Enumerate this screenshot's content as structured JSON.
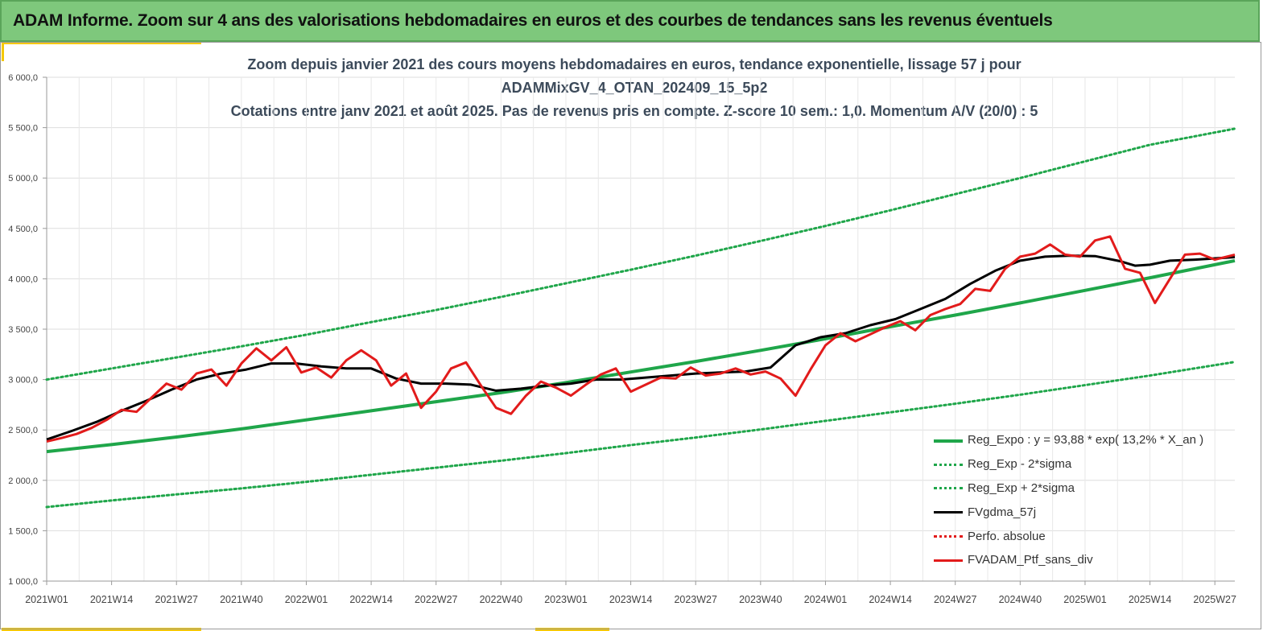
{
  "banner": {
    "title": "ADAM Informe. Zoom sur 4 ans des valorisations hebdomadaires en euros et des courbes de tendances sans les revenus éventuels"
  },
  "chart_data": {
    "type": "line",
    "title": [
      "Zoom depuis janvier 2021 des cours moyens hebdomadaires  en euros, tendance exponentielle, lissage 57 j pour",
      "ADAMMixGV_4_OTAN_202409_15_5p2",
      "Cotations  entre janv 2021 et août 2025. Pas de revenus pris en compte. Z-score 10 sem.: 1,0. Momentum A/V (20/0) : 5"
    ],
    "xlabel": "",
    "ylabel": "",
    "ylim": [
      1000,
      6000
    ],
    "yticks": [
      1000,
      1500,
      2000,
      2500,
      3000,
      3500,
      4000,
      4500,
      5000,
      5500,
      6000
    ],
    "ytick_labels": [
      "1 000,0",
      "1 500,0",
      "2 000,0",
      "2 500,0",
      "3 000,0",
      "3 500,0",
      "4 000,0",
      "4 500,0",
      "5 000,0",
      "5 500,0",
      "6 000,0"
    ],
    "xlim": [
      0,
      238
    ],
    "xticks": [
      0,
      13,
      26,
      39,
      52,
      65,
      78,
      91,
      104,
      117,
      130,
      143,
      156,
      169,
      182,
      195,
      208,
      221,
      234
    ],
    "xtick_labels": [
      "2021W01",
      "2021W14",
      "2021W27",
      "2021W40",
      "2022W01",
      "2022W14",
      "2022W27",
      "2022W40",
      "2023W01",
      "2023W14",
      "2023W27",
      "2023W40",
      "2024W01",
      "2024W14",
      "2024W27",
      "2024W40",
      "2025W01",
      "2025W14",
      "2025W27"
    ],
    "grid": true,
    "legend_position": "bottom-right",
    "series": [
      {
        "name": "Reg_Expo : y = 93,88 * exp( 13,2% *  X_an )",
        "color": "#1fa64a",
        "style": "solid",
        "x": [
          0,
          13,
          26,
          39,
          52,
          65,
          78,
          91,
          104,
          117,
          130,
          143,
          156,
          169,
          182,
          195,
          208,
          221,
          238
        ],
        "values": [
          2285,
          2355,
          2430,
          2510,
          2600,
          2690,
          2780,
          2870,
          2970,
          3075,
          3180,
          3290,
          3405,
          3525,
          3640,
          3760,
          3885,
          4010,
          4180
        ]
      },
      {
        "name": "Reg_Exp - 2*sigma",
        "color": "#1fa64a",
        "style": "dotted",
        "x": [
          0,
          13,
          26,
          39,
          52,
          65,
          78,
          91,
          104,
          117,
          130,
          143,
          156,
          169,
          182,
          195,
          208,
          221,
          238
        ],
        "values": [
          1735,
          1800,
          1860,
          1920,
          1985,
          2055,
          2125,
          2195,
          2270,
          2350,
          2425,
          2505,
          2590,
          2675,
          2760,
          2850,
          2945,
          3040,
          3175
        ]
      },
      {
        "name": "Reg_Exp + 2*sigma",
        "color": "#1fa64a",
        "style": "dotted",
        "x": [
          0,
          13,
          26,
          39,
          52,
          65,
          78,
          91,
          104,
          117,
          130,
          143,
          156,
          169,
          182,
          195,
          208,
          221,
          238
        ],
        "values": [
          3000,
          3110,
          3220,
          3330,
          3445,
          3570,
          3690,
          3820,
          3955,
          4090,
          4230,
          4375,
          4525,
          4680,
          4840,
          5000,
          5165,
          5330,
          5490
        ]
      },
      {
        "name": "FVgdma_57j",
        "color": "#000000",
        "style": "solid",
        "x": [
          0,
          5,
          10,
          15,
          20,
          25,
          30,
          35,
          40,
          45,
          50,
          55,
          60,
          65,
          70,
          75,
          80,
          85,
          90,
          95,
          100,
          105,
          110,
          115,
          120,
          125,
          130,
          135,
          140,
          145,
          150,
          155,
          160,
          165,
          170,
          175,
          180,
          185,
          190,
          195,
          200,
          205,
          210,
          215,
          218,
          221,
          225,
          230,
          238
        ],
        "values": [
          2405,
          2490,
          2580,
          2690,
          2790,
          2900,
          3000,
          3060,
          3100,
          3160,
          3160,
          3130,
          3110,
          3110,
          3010,
          2960,
          2960,
          2950,
          2890,
          2910,
          2940,
          2960,
          3000,
          3000,
          3020,
          3040,
          3060,
          3070,
          3080,
          3120,
          3340,
          3420,
          3460,
          3540,
          3600,
          3700,
          3800,
          3950,
          4080,
          4180,
          4220,
          4230,
          4225,
          4175,
          4130,
          4140,
          4180,
          4190,
          4215
        ]
      },
      {
        "name": "Perfo. absolue",
        "color": "#e21b1b",
        "style": "dotted",
        "x": [],
        "values": []
      },
      {
        "name": "FVADAM_Ptf_sans_div",
        "color": "#e21b1b",
        "style": "solid",
        "x": [
          0,
          3,
          6,
          9,
          12,
          15,
          18,
          21,
          24,
          27,
          30,
          33,
          36,
          39,
          42,
          45,
          48,
          51,
          54,
          57,
          60,
          63,
          66,
          69,
          72,
          75,
          78,
          81,
          84,
          87,
          90,
          93,
          96,
          99,
          102,
          105,
          108,
          111,
          114,
          117,
          120,
          123,
          126,
          129,
          132,
          135,
          138,
          141,
          144,
          147,
          150,
          153,
          156,
          159,
          162,
          165,
          168,
          171,
          174,
          177,
          180,
          183,
          186,
          189,
          192,
          195,
          198,
          201,
          204,
          207,
          210,
          213,
          216,
          219,
          222,
          225,
          228,
          231,
          234,
          238
        ],
        "values": [
          2385,
          2420,
          2460,
          2520,
          2600,
          2700,
          2680,
          2820,
          2960,
          2900,
          3060,
          3100,
          2940,
          3160,
          3310,
          3190,
          3320,
          3070,
          3120,
          3020,
          3190,
          3290,
          3190,
          2940,
          3060,
          2720,
          2880,
          3110,
          3170,
          2940,
          2720,
          2660,
          2840,
          2980,
          2920,
          2840,
          2950,
          3050,
          3110,
          2880,
          2950,
          3020,
          3010,
          3120,
          3040,
          3060,
          3110,
          3050,
          3080,
          3010,
          2840,
          3100,
          3340,
          3460,
          3380,
          3450,
          3520,
          3580,
          3490,
          3640,
          3700,
          3750,
          3900,
          3880,
          4100,
          4220,
          4250,
          4340,
          4240,
          4220,
          4380,
          4420,
          4100,
          4060,
          3760,
          4000,
          4240,
          4250,
          4190,
          4240
        ]
      }
    ]
  }
}
